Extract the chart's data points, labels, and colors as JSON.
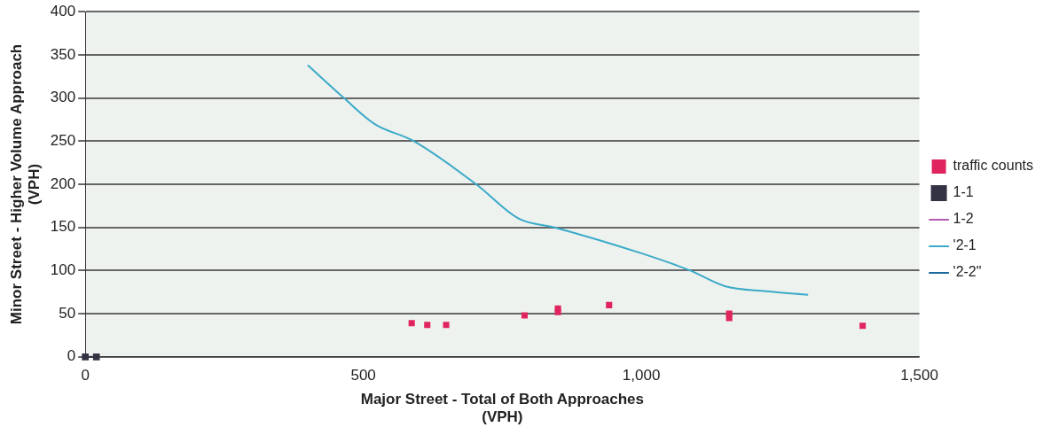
{
  "chart_data": {
    "type": "scatter",
    "xlabel": "Major Street - Total of Both Approaches\n(VPH)",
    "ylabel": "Minor Street - Higher Volume Approach\n(VPH)",
    "xlim": [
      0,
      1500
    ],
    "xticks": [
      0,
      500,
      {
        "value": 1000,
        "label": "1,000"
      },
      {
        "value": 1500,
        "label": "1,500"
      }
    ],
    "ylim": [
      0,
      400
    ],
    "yticks": [
      0,
      50,
      100,
      150,
      200,
      250,
      300,
      350,
      400
    ],
    "grid": "y",
    "legend": "right",
    "series": [
      {
        "name": "traffic counts",
        "marker": "square",
        "color": "#e0245e",
        "x": [
          587,
          615,
          649,
          790,
          850,
          850,
          942,
          1158,
          1158,
          1398
        ],
        "values": [
          39,
          37,
          37,
          48,
          52,
          56,
          60,
          50,
          45,
          36
        ]
      },
      {
        "name": "1-1",
        "type": "line",
        "marker": "square",
        "color": "#333344",
        "x": [
          0,
          20
        ],
        "values": [
          0,
          0
        ]
      },
      {
        "name": "1-2",
        "type": "line",
        "marker": "none",
        "color": "#b05cb0"
      },
      {
        "name": "'2-1",
        "type": "line",
        "marker": "none",
        "color": "#3aaac8",
        "x": [
          400,
          465,
          520,
          591,
          703,
          780,
          844,
          1000,
          1088,
          1150,
          1225,
          1300
        ],
        "values": [
          338,
          300,
          270,
          250,
          200,
          160,
          150,
          120,
          100,
          82,
          76,
          72
        ]
      },
      {
        "name": "'2-2\"",
        "type": "line",
        "marker": "none",
        "color": "#1a6aa0"
      }
    ]
  }
}
